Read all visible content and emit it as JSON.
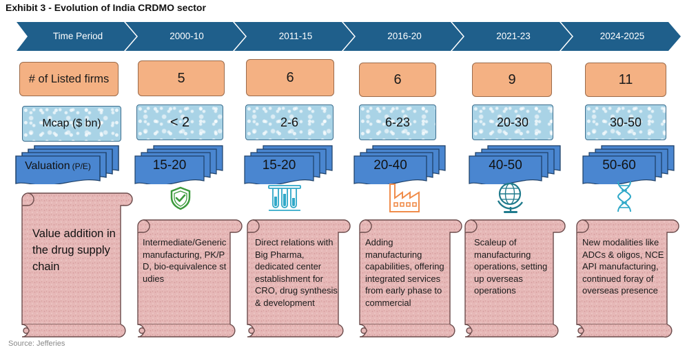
{
  "title": "Exhibit 3 - Evolution of India CRDMO sector",
  "source": "Source: Jefferies",
  "headers": [
    "Time Period",
    "2000-10",
    "2011-15",
    "2016-20",
    "2021-23",
    "2024-2025"
  ],
  "row_labels": {
    "listed_firms": "# of Listed firms",
    "mcap": "Mcap ($ bn)",
    "valuation": "Valuation",
    "valuation_unit": "(P/E)",
    "value_addition": "Value addition in the drug supply chain"
  },
  "periods": [
    {
      "firms": "5",
      "mcap": "< 2",
      "pe": "15-20",
      "icon": "shield-check-icon",
      "desc": "Intermediate/Generic manufacturing, PK/PD, bio-equivalence studies"
    },
    {
      "firms": "6",
      "mcap": "2-6",
      "pe": "15-20",
      "icon": "test-tubes-icon",
      "desc": "Direct relations with Big Pharma, dedicated center establishment for CRO, drug synthesis & development"
    },
    {
      "firms": "6",
      "mcap": "6-23",
      "pe": "20-40",
      "icon": "factory-icon",
      "desc": "Adding manufacturing capabilities, offering integrated services from early phase to commercial"
    },
    {
      "firms": "9",
      "mcap": "20-30",
      "pe": "40-50",
      "icon": "globe-icon",
      "desc": "Scaleup of manufacturing operations, setting up overseas operations"
    },
    {
      "firms": "11",
      "mcap": "30-50",
      "pe": "50-60",
      "icon": "dna-icon",
      "desc": "New modalities like ADCs & oligos, NCE API manufacturing, continued foray of overseas presence"
    }
  ],
  "colors": {
    "chevron": "#1f5f8b",
    "orange": "#f4b183",
    "blue": "#4a86d0",
    "pink": "#e6b8b7",
    "green": "#3c9a3c",
    "cyan": "#2fa8c8",
    "orange_icon": "#f08c4a",
    "teal": "#1f7a8c"
  }
}
